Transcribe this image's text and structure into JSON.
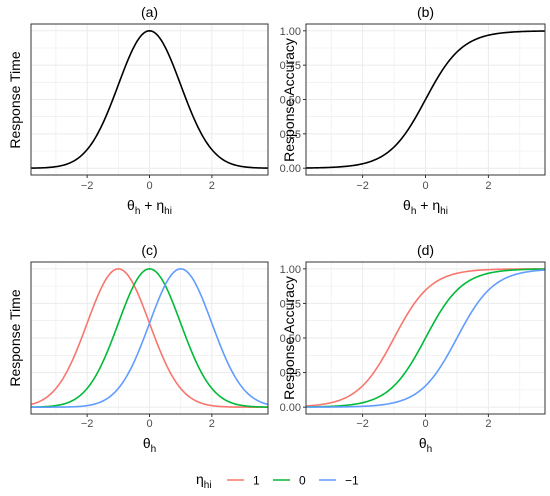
{
  "legend": {
    "title": "η",
    "title_sub": "hi",
    "position": "bottom",
    "entries": [
      {
        "label": "1",
        "color": "#F8766D"
      },
      {
        "label": "0",
        "color": "#00BA38"
      },
      {
        "label": "−1",
        "color": "#619CFF"
      }
    ]
  },
  "chart_data": [
    {
      "type": "line",
      "title": "(a)",
      "ylabel": "Response Time",
      "xlabel": {
        "parts": [
          {
            "t": "θ"
          },
          {
            "t": "h",
            "sub": true
          },
          {
            "t": " + η"
          },
          {
            "t": "hi",
            "sub": true
          }
        ]
      },
      "xlim": [
        -3.8,
        3.8
      ],
      "ylim": [
        0,
        1
      ],
      "x_ticks": [
        -2,
        0,
        2
      ],
      "x_tick_labels": [
        "−2",
        "0",
        "2"
      ],
      "y_ticks": [],
      "y_tick_labels": [],
      "grid": true,
      "curve": "bell",
      "series": [
        {
          "center": 0,
          "color": "#000000"
        }
      ]
    },
    {
      "type": "line",
      "title": "(b)",
      "ylabel": "Response Accuracy",
      "xlabel": {
        "parts": [
          {
            "t": "θ"
          },
          {
            "t": "h",
            "sub": true
          },
          {
            "t": " + η"
          },
          {
            "t": "hi",
            "sub": true
          }
        ]
      },
      "xlim": [
        -3.8,
        3.8
      ],
      "ylim": [
        0,
        1
      ],
      "x_ticks": [
        -2,
        0,
        2
      ],
      "x_tick_labels": [
        "−2",
        "0",
        "2"
      ],
      "y_ticks": [
        0,
        0.25,
        0.5,
        0.75,
        1
      ],
      "y_tick_labels": [
        "0.00",
        "0.25",
        "0.50",
        "0.75",
        "1.00"
      ],
      "grid": true,
      "curve": "logistic",
      "series": [
        {
          "center": 0,
          "color": "#000000"
        }
      ]
    },
    {
      "type": "line",
      "title": "(c)",
      "ylabel": "Response Time",
      "xlabel": {
        "parts": [
          {
            "t": "θ"
          },
          {
            "t": "h",
            "sub": true
          }
        ]
      },
      "xlim": [
        -3.8,
        3.8
      ],
      "ylim": [
        0,
        1
      ],
      "x_ticks": [
        -2,
        0,
        2
      ],
      "x_tick_labels": [
        "−2",
        "0",
        "2"
      ],
      "y_ticks": [],
      "y_tick_labels": [],
      "grid": true,
      "curve": "bell",
      "series": [
        {
          "center": -1,
          "color": "#F8766D"
        },
        {
          "center": 0,
          "color": "#00BA38"
        },
        {
          "center": 1,
          "color": "#619CFF"
        }
      ]
    },
    {
      "type": "line",
      "title": "(d)",
      "ylabel": "Response Accuracy",
      "xlabel": {
        "parts": [
          {
            "t": "θ"
          },
          {
            "t": "h",
            "sub": true
          }
        ]
      },
      "xlim": [
        -3.8,
        3.8
      ],
      "ylim": [
        0,
        1
      ],
      "x_ticks": [
        -2,
        0,
        2
      ],
      "x_tick_labels": [
        "−2",
        "0",
        "2"
      ],
      "y_ticks": [
        0,
        0.25,
        0.5,
        0.75,
        1
      ],
      "y_tick_labels": [
        "0.00",
        "0.25",
        "0.50",
        "0.75",
        "1.00"
      ],
      "grid": true,
      "curve": "logistic",
      "series": [
        {
          "center": -1,
          "color": "#F8766D"
        },
        {
          "center": 0,
          "color": "#00BA38"
        },
        {
          "center": 1,
          "color": "#619CFF"
        }
      ]
    }
  ]
}
